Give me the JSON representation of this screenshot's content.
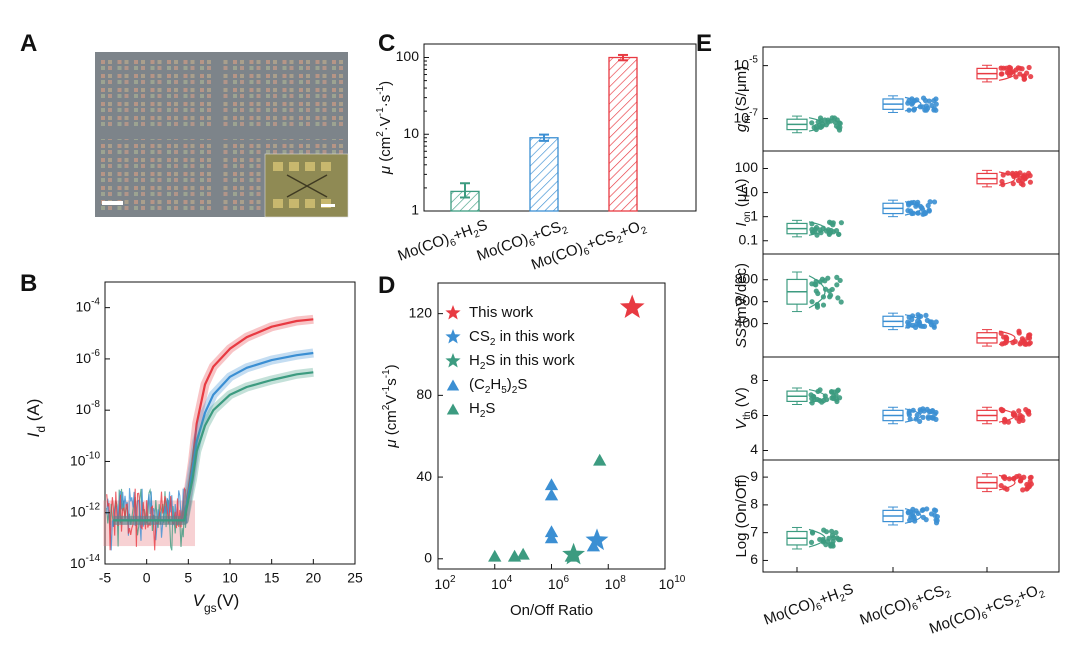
{
  "panels": {
    "A": "A",
    "B": "B",
    "C": "C",
    "D": "D",
    "E": "E"
  },
  "colors": {
    "green": "#3c9b80",
    "blue": "#3b8fd3",
    "red": "#e83a42"
  },
  "chart_data": [
    {
      "id": "A",
      "type": "image",
      "content": "micrograph of transistor array with inset",
      "texts": []
    },
    {
      "id": "B",
      "type": "line",
      "yscale": "log",
      "xlim": [
        -5,
        25
      ],
      "ylim": [
        "1e-14",
        "1e-3"
      ],
      "xticks": [
        "-5",
        "0",
        "5",
        "10",
        "15",
        "20",
        "25"
      ],
      "yticks": [
        "10^-14",
        "10^-12",
        "10^-10",
        "10^-8",
        "10^-6",
        "10^-4"
      ],
      "xlabel": {
        "base": "V",
        "sub": "gs",
        "tail": "(V)"
      },
      "ylabel": {
        "base": "I",
        "sub": "d",
        "tail": " (A)"
      },
      "series": [
        {
          "color": "red",
          "x": [
            -4,
            0,
            4.5,
            5.5,
            6,
            7,
            8,
            10,
            12,
            15,
            18,
            20
          ],
          "y": [
            5e-13,
            5e-13,
            5e-13,
            1e-10,
            3e-09,
            1e-07,
            5e-07,
            2.5e-06,
            7e-06,
            1.8e-05,
            3e-05,
            3.5e-05
          ]
        },
        {
          "color": "blue",
          "x": [
            -4,
            0,
            4.5,
            5.5,
            6,
            7,
            8,
            10,
            12,
            15,
            18,
            20
          ],
          "y": [
            5e-13,
            5e-13,
            5e-13,
            5e-11,
            6e-10,
            8e-09,
            4e-08,
            2e-07,
            4.5e-07,
            9e-07,
            1.4e-06,
            1.7e-06
          ]
        },
        {
          "color": "green",
          "x": [
            -4,
            0,
            4.5,
            5.5,
            6,
            7,
            8,
            10,
            12,
            15,
            18,
            20
          ],
          "y": [
            5e-13,
            5e-13,
            5e-13,
            2e-11,
            2.5e-10,
            2.5e-09,
            1e-08,
            4e-08,
            8e-08,
            1.5e-07,
            2.5e-07,
            3e-07
          ]
        }
      ]
    },
    {
      "id": "C",
      "type": "bar",
      "yscale": "log",
      "ylim": [
        1,
        150
      ],
      "yticks": [
        "1",
        "10",
        "100"
      ],
      "ylabel": "μ (cm²·V⁻¹·s⁻¹)",
      "categories": [
        "Mo(CO)6+H2S",
        "Mo(CO)6+CS2",
        "Mo(CO)6+CS2+O2"
      ],
      "category_labels": [
        [
          {
            "t": "Mo(CO)"
          },
          {
            "t": "6",
            "sub": true
          },
          {
            "t": "+H"
          },
          {
            "t": "2",
            "sub": true
          },
          {
            "t": "S"
          }
        ],
        [
          {
            "t": "Mo(CO)"
          },
          {
            "t": "6",
            "sub": true
          },
          {
            "t": "+CS"
          },
          {
            "t": "2",
            "sub": true
          }
        ],
        [
          {
            "t": "Mo(CO)"
          },
          {
            "t": "6",
            "sub": true
          },
          {
            "t": "+CS"
          },
          {
            "t": "2",
            "sub": true
          },
          {
            "t": "+O"
          },
          {
            "t": "2",
            "sub": true
          }
        ]
      ],
      "values": [
        1.8,
        9,
        100
      ],
      "errors": [
        [
          1.5,
          2.3
        ],
        [
          8.2,
          9.9
        ],
        [
          92,
          108
        ]
      ],
      "colors": [
        "green",
        "blue",
        "red"
      ]
    },
    {
      "id": "D",
      "type": "scatter",
      "xscale": "log",
      "xlim": [
        100,
        10000000000.0
      ],
      "ylim": [
        -5,
        135
      ],
      "xticks": [
        "10^2",
        "10^4",
        "10^6",
        "10^8",
        "10^10"
      ],
      "yticks": [
        "0",
        "40",
        "80",
        "120"
      ],
      "xlabel": "On/Off Ratio",
      "ylabel": "μ (cm²V⁻¹s⁻¹)",
      "legend": [
        {
          "marker": "star",
          "color": "red",
          "parts": [
            {
              "t": "This work"
            }
          ]
        },
        {
          "marker": "star",
          "color": "blue",
          "parts": [
            {
              "t": "CS"
            },
            {
              "t": "2",
              "sub": true
            },
            {
              "t": " in this work"
            }
          ]
        },
        {
          "marker": "star",
          "color": "green",
          "parts": [
            {
              "t": "H"
            },
            {
              "t": "2",
              "sub": true
            },
            {
              "t": "S in this work"
            }
          ]
        },
        {
          "marker": "triangle",
          "color": "blue",
          "parts": [
            {
              "t": "(C"
            },
            {
              "t": "2",
              "sub": true
            },
            {
              "t": "H"
            },
            {
              "t": "5",
              "sub": true
            },
            {
              "t": ")"
            },
            {
              "t": "2",
              "sub": true
            },
            {
              "t": "S"
            }
          ]
        },
        {
          "marker": "triangle",
          "color": "green",
          "parts": [
            {
              "t": "H"
            },
            {
              "t": "2",
              "sub": true
            },
            {
              "t": "S"
            }
          ]
        }
      ],
      "series": [
        {
          "name": "This work",
          "marker": "star",
          "color": "red",
          "points": [
            [
              700000000.0,
              123
            ]
          ]
        },
        {
          "name": "CS2 in this work",
          "marker": "star",
          "color": "blue",
          "points": [
            [
              40000000.0,
              9
            ]
          ]
        },
        {
          "name": "H2S in this work",
          "marker": "star",
          "color": "green",
          "points": [
            [
              6000000.0,
              2
            ]
          ]
        },
        {
          "name": "(C2H5)2S",
          "marker": "triangle",
          "color": "blue",
          "points": [
            [
              1000000.0,
              36
            ],
            [
              1000000.0,
              31
            ],
            [
              1000000.0,
              13
            ],
            [
              1000000.0,
              10
            ],
            [
              30000000.0,
              6
            ]
          ]
        },
        {
          "name": "H2S",
          "marker": "triangle",
          "color": "green",
          "points": [
            [
              10000.0,
              1
            ],
            [
              50000.0,
              1
            ],
            [
              100000.0,
              2
            ],
            [
              5000000.0,
              1
            ],
            [
              50000000.0,
              48
            ]
          ]
        }
      ]
    },
    {
      "id": "E",
      "type": "box",
      "categories": [
        "Mo(CO)6+H2S",
        "Mo(CO)6+CS2",
        "Mo(CO)6+CS2+O2"
      ],
      "colors": [
        "green",
        "blue",
        "red"
      ],
      "subplots": [
        {
          "ylabel": "g_m (S/μm)",
          "scale": "log",
          "ylim": [
            "1e-8",
            "3e-5"
          ],
          "yticks": [
            "10^-7",
            "10^-5"
          ],
          "medians": [
            "6e-8",
            "3.5e-7",
            "5e-6"
          ]
        },
        {
          "ylabel": "I_on (μA)",
          "scale": "log",
          "ylim": [
            0.05,
            300
          ],
          "yticks": [
            "0.1",
            "1",
            "10",
            "100"
          ],
          "medians": [
            0.32,
            2.2,
            38
          ]
        },
        {
          "ylabel": "SS (mV/dec)",
          "scale": "linear",
          "ylim": [
            150,
            980
          ],
          "yticks": [
            "400",
            "600",
            "800"
          ],
          "medians": [
            690,
            420,
            270
          ]
        },
        {
          "ylabel": "V_th (V)",
          "scale": "linear",
          "ylim": [
            3.8,
            9
          ],
          "yticks": [
            "4",
            "6",
            "8"
          ],
          "medians": [
            7.1,
            6,
            6
          ]
        },
        {
          "ylabel": "Log (On/Off)",
          "scale": "linear",
          "ylim": [
            5.8,
            9.4
          ],
          "yticks": [
            "6",
            "7",
            "8",
            "9"
          ],
          "medians": [
            6.8,
            7.6,
            8.8
          ]
        }
      ],
      "category_labels": [
        [
          {
            "t": "Mo(CO)"
          },
          {
            "t": "6",
            "sub": true
          },
          {
            "t": "+H"
          },
          {
            "t": "2",
            "sub": true
          },
          {
            "t": "S"
          }
        ],
        [
          {
            "t": "Mo(CO)"
          },
          {
            "t": "6",
            "sub": true
          },
          {
            "t": "+CS"
          },
          {
            "t": "2",
            "sub": true
          }
        ],
        [
          {
            "t": "Mo(CO)"
          },
          {
            "t": "6",
            "sub": true
          },
          {
            "t": "+CS"
          },
          {
            "t": "2",
            "sub": true
          },
          {
            "t": "+O"
          },
          {
            "t": "2",
            "sub": true
          }
        ]
      ]
    }
  ]
}
